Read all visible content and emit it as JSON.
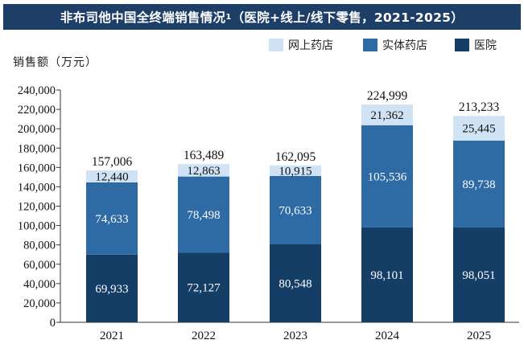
{
  "title_main": "非布司他中国全终端销售情况",
  "title_sup": "1",
  "title_rest": "（医院+线上/线下零售，2021-2025）",
  "ylabel": "销售额（万元）",
  "colors": {
    "online": "#cfe3f4",
    "retail": "#2e6aa3",
    "hospital": "#143e66",
    "title_bg": "#1d3e66"
  },
  "chart_data": {
    "type": "bar",
    "stacked": true,
    "categories": [
      "2021",
      "2022",
      "2023",
      "2024",
      "2025"
    ],
    "series": [
      {
        "name": "医院",
        "values": [
          69933,
          72127,
          80548,
          98101,
          98051
        ]
      },
      {
        "name": "实体药店",
        "values": [
          74633,
          78498,
          70633,
          105536,
          89738
        ]
      },
      {
        "name": "网上药店",
        "values": [
          12440,
          12863,
          10915,
          21362,
          25445
        ]
      }
    ],
    "totals": [
      157006,
      163489,
      162095,
      224999,
      213233
    ],
    "labels": {
      "hospital": [
        "69,933",
        "72,127",
        "80,548",
        "98,101",
        "98,051"
      ],
      "retail": [
        "74,633",
        "78,498",
        "70,633",
        "105,536",
        "89,738"
      ],
      "online": [
        "12,440",
        "12,863",
        "10,915",
        "21,362",
        "25,445"
      ],
      "totals": [
        "157,006",
        "163,489",
        "162,095",
        "224,999",
        "213,233"
      ]
    },
    "yticks": [
      "0",
      "20,000",
      "40,000",
      "60,000",
      "80,000",
      "100,000",
      "120,000",
      "140,000",
      "160,000",
      "180,000",
      "200,000",
      "220,000",
      "240,000"
    ],
    "ylim": [
      0,
      240000
    ],
    "legend_position": "top-right"
  }
}
